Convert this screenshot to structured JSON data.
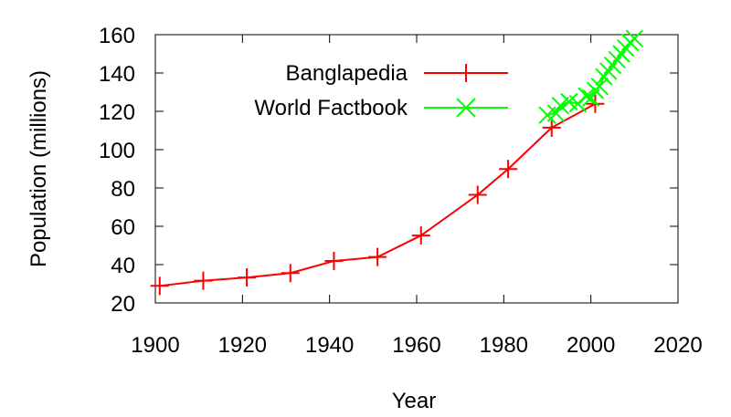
{
  "chart_data": {
    "type": "line",
    "title": "",
    "xlabel": "Year",
    "ylabel": "Population (millions)",
    "xlim": [
      1900,
      2020
    ],
    "ylim": [
      20,
      160
    ],
    "xticks": [
      1900,
      1920,
      1940,
      1960,
      1980,
      2000,
      2020
    ],
    "yticks": [
      20,
      40,
      60,
      80,
      100,
      120,
      140,
      160
    ],
    "grid": false,
    "legend_position": "top-right",
    "series": [
      {
        "name": "Banglapedia",
        "color": "#ff0000",
        "marker": "plus",
        "x": [
          1901,
          1911,
          1921,
          1931,
          1941,
          1951,
          1961,
          1974,
          1981,
          1991,
          2001
        ],
        "y": [
          28.9,
          31.6,
          33.3,
          35.6,
          41.9,
          44.0,
          55.2,
          76.4,
          89.9,
          111.5,
          123.9
        ]
      },
      {
        "name": "World Factbook",
        "color": "#00ff00",
        "marker": "cross",
        "x": [
          1990,
          1992,
          1993,
          1995,
          1997,
          1999,
          2000,
          2001,
          2002,
          2003,
          2004,
          2005,
          2006,
          2007,
          2008,
          2009,
          2010
        ],
        "y": [
          118,
          119,
          123,
          125,
          124,
          128,
          127,
          131,
          133,
          138,
          141,
          144,
          147,
          150,
          153,
          156,
          158
        ]
      }
    ]
  }
}
